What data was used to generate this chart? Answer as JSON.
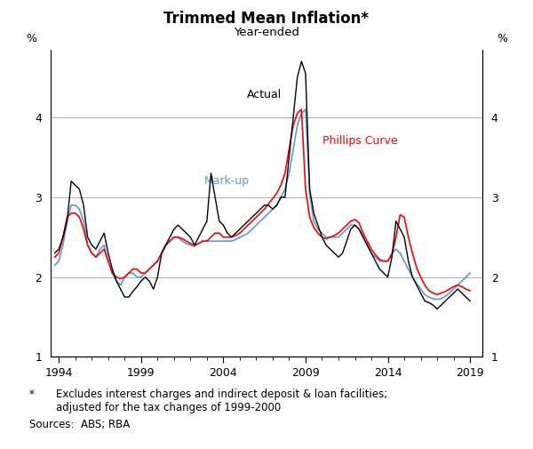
{
  "title": "Trimmed Mean Inflation*",
  "subtitle": "Year-ended",
  "ylabel_left": "%",
  "ylabel_right": "%",
  "ylim": [
    1,
    4.85
  ],
  "yticks": [
    1,
    2,
    3,
    4
  ],
  "xlim_start": 1993.5,
  "xlim_end": 2019.75,
  "xticks": [
    1994,
    1999,
    2004,
    2009,
    2014,
    2019
  ],
  "footnote_star": "*",
  "footnote_line1": "Excludes interest charges and indirect deposit & loan facilities;",
  "footnote_line2": "adjusted for the tax changes of 1999-2000",
  "sources": "Sources:  ABS; RBA",
  "actual_label": "Actual",
  "markup_label": "Mark-up",
  "phillips_label": "Phillips Curve",
  "actual_color": "#000000",
  "markup_color": "#5B9BD5",
  "phillips_color": "#FF0000",
  "actual_x": [
    1993.75,
    1994.0,
    1994.25,
    1994.5,
    1994.75,
    1995.0,
    1995.25,
    1995.5,
    1995.75,
    1996.0,
    1996.25,
    1996.5,
    1996.75,
    1997.0,
    1997.25,
    1997.5,
    1997.75,
    1998.0,
    1998.25,
    1998.5,
    1998.75,
    1999.0,
    1999.25,
    1999.5,
    1999.75,
    2000.0,
    2000.25,
    2000.5,
    2000.75,
    2001.0,
    2001.25,
    2001.5,
    2001.75,
    2002.0,
    2002.25,
    2002.5,
    2002.75,
    2003.0,
    2003.25,
    2003.5,
    2003.75,
    2004.0,
    2004.25,
    2004.5,
    2004.75,
    2005.0,
    2005.25,
    2005.5,
    2005.75,
    2006.0,
    2006.25,
    2006.5,
    2006.75,
    2007.0,
    2007.25,
    2007.5,
    2007.75,
    2008.0,
    2008.25,
    2008.5,
    2008.75,
    2009.0,
    2009.25,
    2009.5,
    2009.75,
    2010.0,
    2010.25,
    2010.5,
    2010.75,
    2011.0,
    2011.25,
    2011.5,
    2011.75,
    2012.0,
    2012.25,
    2012.5,
    2012.75,
    2013.0,
    2013.25,
    2013.5,
    2013.75,
    2014.0,
    2014.25,
    2014.5,
    2014.75,
    2015.0,
    2015.25,
    2015.5,
    2015.75,
    2016.0,
    2016.25,
    2016.5,
    2016.75,
    2017.0,
    2017.25,
    2017.5,
    2017.75,
    2018.0,
    2018.25,
    2018.5,
    2018.75,
    2019.0
  ],
  "actual_y": [
    2.3,
    2.35,
    2.5,
    2.7,
    3.2,
    3.15,
    3.1,
    2.9,
    2.5,
    2.4,
    2.35,
    2.45,
    2.55,
    2.3,
    2.1,
    1.95,
    1.85,
    1.75,
    1.75,
    1.82,
    1.88,
    1.95,
    2.0,
    1.95,
    1.85,
    2.0,
    2.3,
    2.4,
    2.5,
    2.6,
    2.65,
    2.6,
    2.55,
    2.5,
    2.4,
    2.5,
    2.6,
    2.7,
    3.3,
    3.0,
    2.7,
    2.65,
    2.55,
    2.5,
    2.55,
    2.6,
    2.65,
    2.7,
    2.75,
    2.8,
    2.85,
    2.9,
    2.9,
    2.85,
    2.9,
    3.0,
    3.0,
    3.5,
    4.0,
    4.5,
    4.7,
    4.55,
    3.1,
    2.8,
    2.65,
    2.5,
    2.4,
    2.35,
    2.3,
    2.25,
    2.3,
    2.45,
    2.6,
    2.65,
    2.6,
    2.5,
    2.4,
    2.3,
    2.2,
    2.1,
    2.05,
    2.0,
    2.25,
    2.7,
    2.6,
    2.5,
    2.2,
    2.0,
    1.9,
    1.8,
    1.7,
    1.68,
    1.65,
    1.6,
    1.65,
    1.7,
    1.75,
    1.8,
    1.85,
    1.8,
    1.75,
    1.7
  ],
  "markup_x": [
    1993.75,
    1994.0,
    1994.25,
    1994.5,
    1994.75,
    1995.0,
    1995.25,
    1995.5,
    1995.75,
    1996.0,
    1996.25,
    1996.5,
    1996.75,
    1997.0,
    1997.25,
    1997.5,
    1997.75,
    1998.0,
    1998.25,
    1998.5,
    1998.75,
    1999.0,
    1999.25,
    1999.5,
    1999.75,
    2000.0,
    2000.25,
    2000.5,
    2000.75,
    2001.0,
    2001.25,
    2001.5,
    2001.75,
    2002.0,
    2002.25,
    2002.5,
    2002.75,
    2003.0,
    2003.25,
    2003.5,
    2003.75,
    2004.0,
    2004.25,
    2004.5,
    2004.75,
    2005.0,
    2005.25,
    2005.5,
    2005.75,
    2006.0,
    2006.25,
    2006.5,
    2006.75,
    2007.0,
    2007.25,
    2007.5,
    2007.75,
    2008.0,
    2008.25,
    2008.5,
    2008.75,
    2009.0,
    2009.25,
    2009.5,
    2009.75,
    2010.0,
    2010.25,
    2010.5,
    2010.75,
    2011.0,
    2011.25,
    2011.5,
    2011.75,
    2012.0,
    2012.25,
    2012.5,
    2012.75,
    2013.0,
    2013.25,
    2013.5,
    2013.75,
    2014.0,
    2014.25,
    2014.5,
    2014.75,
    2015.0,
    2015.25,
    2015.5,
    2015.75,
    2016.0,
    2016.25,
    2016.5,
    2016.75,
    2017.0,
    2017.25,
    2017.5,
    2017.75,
    2018.0,
    2018.25,
    2018.5,
    2018.75,
    2019.0
  ],
  "markup_y": [
    2.15,
    2.2,
    2.4,
    2.7,
    2.9,
    2.9,
    2.85,
    2.7,
    2.4,
    2.3,
    2.25,
    2.35,
    2.4,
    2.2,
    2.05,
    1.95,
    1.9,
    2.0,
    2.05,
    2.05,
    2.0,
    2.0,
    2.05,
    2.1,
    2.15,
    2.2,
    2.3,
    2.4,
    2.45,
    2.5,
    2.5,
    2.45,
    2.42,
    2.4,
    2.38,
    2.42,
    2.45,
    2.45,
    2.45,
    2.45,
    2.45,
    2.45,
    2.45,
    2.45,
    2.47,
    2.5,
    2.52,
    2.55,
    2.6,
    2.65,
    2.7,
    2.75,
    2.8,
    2.85,
    2.9,
    3.0,
    3.1,
    3.3,
    3.6,
    3.9,
    4.05,
    4.1,
    3.05,
    2.7,
    2.6,
    2.55,
    2.5,
    2.5,
    2.5,
    2.5,
    2.55,
    2.6,
    2.65,
    2.65,
    2.6,
    2.5,
    2.4,
    2.3,
    2.25,
    2.2,
    2.2,
    2.2,
    2.3,
    2.35,
    2.3,
    2.2,
    2.1,
    2.0,
    1.92,
    1.85,
    1.78,
    1.75,
    1.73,
    1.72,
    1.73,
    1.76,
    1.8,
    1.85,
    1.9,
    1.95,
    2.0,
    2.05
  ],
  "phillips_x": [
    1993.75,
    1994.0,
    1994.25,
    1994.5,
    1994.75,
    1995.0,
    1995.25,
    1995.5,
    1995.75,
    1996.0,
    1996.25,
    1996.5,
    1996.75,
    1997.0,
    1997.25,
    1997.5,
    1997.75,
    1998.0,
    1998.25,
    1998.5,
    1998.75,
    1999.0,
    1999.25,
    1999.5,
    1999.75,
    2000.0,
    2000.25,
    2000.5,
    2000.75,
    2001.0,
    2001.25,
    2001.5,
    2001.75,
    2002.0,
    2002.25,
    2002.5,
    2002.75,
    2003.0,
    2003.25,
    2003.5,
    2003.75,
    2004.0,
    2004.25,
    2004.5,
    2004.75,
    2005.0,
    2005.25,
    2005.5,
    2005.75,
    2006.0,
    2006.25,
    2006.5,
    2006.75,
    2007.0,
    2007.25,
    2007.5,
    2007.75,
    2008.0,
    2008.25,
    2008.5,
    2008.75,
    2009.0,
    2009.25,
    2009.5,
    2009.75,
    2010.0,
    2010.25,
    2010.5,
    2010.75,
    2011.0,
    2011.25,
    2011.5,
    2011.75,
    2012.0,
    2012.25,
    2012.5,
    2012.75,
    2013.0,
    2013.25,
    2013.5,
    2013.75,
    2014.0,
    2014.25,
    2014.5,
    2014.75,
    2015.0,
    2015.25,
    2015.5,
    2015.75,
    2016.0,
    2016.25,
    2016.5,
    2016.75,
    2017.0,
    2017.25,
    2017.5,
    2017.75,
    2018.0,
    2018.25,
    2018.5,
    2018.75,
    2019.0
  ],
  "phillips_y": [
    2.25,
    2.3,
    2.5,
    2.75,
    2.8,
    2.8,
    2.75,
    2.6,
    2.4,
    2.3,
    2.25,
    2.3,
    2.35,
    2.2,
    2.05,
    2.0,
    1.98,
    2.0,
    2.05,
    2.1,
    2.1,
    2.05,
    2.05,
    2.1,
    2.15,
    2.2,
    2.3,
    2.4,
    2.45,
    2.5,
    2.5,
    2.48,
    2.45,
    2.42,
    2.4,
    2.42,
    2.45,
    2.45,
    2.5,
    2.55,
    2.55,
    2.5,
    2.5,
    2.5,
    2.52,
    2.55,
    2.6,
    2.65,
    2.7,
    2.75,
    2.8,
    2.85,
    2.92,
    2.98,
    3.05,
    3.15,
    3.3,
    3.6,
    3.9,
    4.05,
    4.1,
    3.1,
    2.75,
    2.62,
    2.55,
    2.5,
    2.48,
    2.5,
    2.52,
    2.55,
    2.6,
    2.65,
    2.7,
    2.72,
    2.68,
    2.55,
    2.45,
    2.35,
    2.28,
    2.22,
    2.2,
    2.2,
    2.28,
    2.5,
    2.78,
    2.75,
    2.5,
    2.3,
    2.12,
    2.0,
    1.9,
    1.83,
    1.8,
    1.78,
    1.8,
    1.82,
    1.85,
    1.88,
    1.9,
    1.88,
    1.85,
    1.83
  ]
}
